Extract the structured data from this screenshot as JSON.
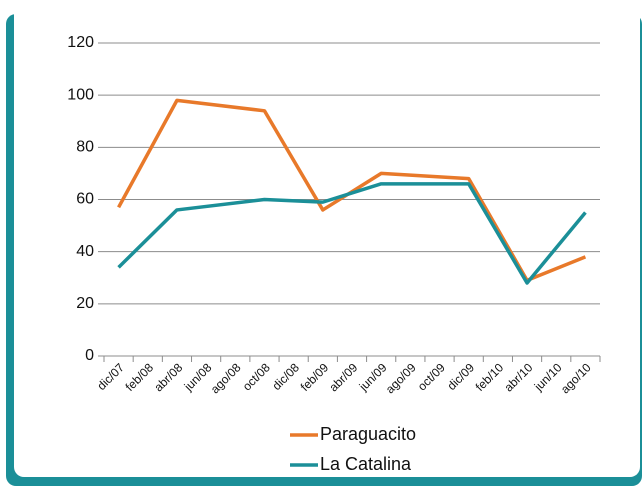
{
  "chart_data": {
    "type": "line",
    "categories": [
      "dic/07",
      "feb/08",
      "abr/08",
      "jun/08",
      "ago/08",
      "oct/08",
      "dic/08",
      "feb/09",
      "abr/09",
      "jun/09",
      "ago/09",
      "oct/09",
      "dic/09",
      "feb/10",
      "abr/10",
      "jun/10",
      "ago/10"
    ],
    "series": [
      {
        "name": "Paraguacito",
        "color": "#e8792a",
        "values": [
          57,
          null,
          98,
          null,
          null,
          94,
          null,
          56,
          null,
          70,
          null,
          null,
          68,
          null,
          29,
          null,
          38
        ]
      },
      {
        "name": "La Catalina",
        "color": "#1b8f98",
        "values": [
          34,
          null,
          56,
          null,
          null,
          60,
          null,
          59,
          null,
          66,
          null,
          null,
          66,
          null,
          28,
          null,
          55
        ]
      }
    ],
    "connect_gaps": true,
    "ylim": [
      0,
      120
    ],
    "yticks": [
      0,
      20,
      40,
      60,
      80,
      100,
      120
    ],
    "grid": true,
    "legend": "bottom"
  }
}
